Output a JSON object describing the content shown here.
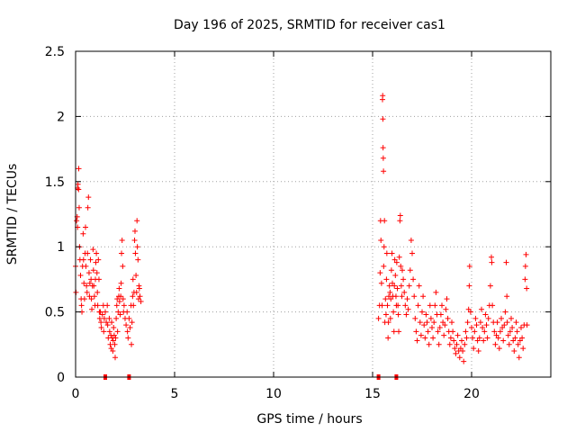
{
  "chart_data": {
    "type": "scatter",
    "title": "Day 196 of 2025, SRMTID for receiver cas1",
    "xlabel": "GPS time / hours",
    "ylabel": "SRMTID / TECUs",
    "xlim": [
      0,
      24
    ],
    "ylim": [
      0,
      2.5
    ],
    "xticks": [
      0,
      5,
      10,
      15,
      20
    ],
    "yticks": [
      0,
      0.5,
      1,
      1.5,
      2,
      2.5
    ],
    "xtick_labels": [
      "0",
      "5",
      "10",
      "15",
      "20"
    ],
    "ytick_labels": [
      "0",
      "0.5",
      "1",
      "1.5",
      "2",
      "2.5"
    ],
    "grid": true,
    "marker": "+",
    "marker_color": "#ff0000",
    "series": [
      {
        "name": "cas1",
        "points": [
          [
            0.0,
            0.85
          ],
          [
            0.02,
            0.65
          ],
          [
            0.05,
            1.2
          ],
          [
            0.08,
            1.23
          ],
          [
            0.1,
            1.15
          ],
          [
            0.1,
            1.45
          ],
          [
            0.12,
            1.48
          ],
          [
            0.15,
            1.44
          ],
          [
            0.16,
            1.6
          ],
          [
            0.18,
            1.3
          ],
          [
            0.2,
            1.0
          ],
          [
            0.22,
            0.9
          ],
          [
            0.25,
            0.78
          ],
          [
            0.28,
            0.6
          ],
          [
            0.3,
            0.55
          ],
          [
            0.32,
            0.5
          ],
          [
            0.35,
            0.85
          ],
          [
            0.38,
            1.1
          ],
          [
            0.4,
            0.9
          ],
          [
            0.42,
            0.72
          ],
          [
            0.45,
            0.6
          ],
          [
            0.48,
            0.95
          ],
          [
            0.5,
            1.15
          ],
          [
            0.52,
            0.85
          ],
          [
            0.55,
            0.7
          ],
          [
            0.58,
            0.65
          ],
          [
            0.6,
            0.95
          ],
          [
            0.62,
            1.3
          ],
          [
            0.65,
            1.38
          ],
          [
            0.68,
            0.8
          ],
          [
            0.7,
            0.62
          ],
          [
            0.72,
            0.72
          ],
          [
            0.75,
            0.9
          ],
          [
            0.78,
            0.75
          ],
          [
            0.8,
            0.6
          ],
          [
            0.82,
            0.52
          ],
          [
            0.85,
            0.7
          ],
          [
            0.88,
            0.98
          ],
          [
            0.9,
            0.82
          ],
          [
            0.92,
            0.7
          ],
          [
            0.95,
            0.62
          ],
          [
            0.98,
            0.55
          ],
          [
            1.0,
            0.75
          ],
          [
            1.02,
            0.88
          ],
          [
            1.05,
            0.95
          ],
          [
            1.08,
            0.8
          ],
          [
            1.1,
            0.65
          ],
          [
            1.12,
            0.55
          ],
          [
            1.15,
            0.9
          ],
          [
            1.18,
            0.75
          ],
          [
            1.2,
            0.5
          ],
          [
            1.22,
            0.45
          ],
          [
            1.25,
            0.5
          ],
          [
            1.28,
            0.42
          ],
          [
            1.3,
            0.38
          ],
          [
            1.35,
            0.48
          ],
          [
            1.4,
            0.55
          ],
          [
            1.42,
            0.35
          ],
          [
            1.45,
            0.45
          ],
          [
            1.5,
            0.5
          ],
          [
            1.55,
            0.42
          ],
          [
            1.6,
            0.55
          ],
          [
            1.62,
            0.4
          ],
          [
            1.65,
            0.3
          ],
          [
            1.7,
            0.45
          ],
          [
            1.72,
            0.35
          ],
          [
            1.75,
            0.25
          ],
          [
            1.78,
            0.32
          ],
          [
            1.8,
            0.22
          ],
          [
            1.82,
            0.42
          ],
          [
            1.85,
            0.3
          ],
          [
            1.88,
            0.2
          ],
          [
            1.9,
            0.28
          ],
          [
            1.92,
            0.38
          ],
          [
            1.95,
            0.32
          ],
          [
            1.98,
            0.25
          ],
          [
            2.0,
            0.15
          ],
          [
            2.02,
            0.3
          ],
          [
            2.05,
            0.45
          ],
          [
            2.08,
            0.55
          ],
          [
            2.1,
            0.6
          ],
          [
            2.12,
            0.35
          ],
          [
            2.15,
            0.5
          ],
          [
            2.18,
            0.62
          ],
          [
            2.2,
            0.68
          ],
          [
            2.22,
            0.58
          ],
          [
            2.25,
            0.48
          ],
          [
            2.28,
            0.62
          ],
          [
            2.3,
            0.72
          ],
          [
            2.32,
            0.95
          ],
          [
            2.35,
            1.05
          ],
          [
            2.38,
            0.85
          ],
          [
            2.4,
            0.6
          ],
          [
            2.42,
            0.5
          ],
          [
            2.45,
            0.55
          ],
          [
            2.5,
            0.45
          ],
          [
            2.55,
            0.4
          ],
          [
            2.6,
            0.5
          ],
          [
            2.62,
            0.35
          ],
          [
            2.65,
            0.3
          ],
          [
            2.7,
            0.45
          ],
          [
            2.75,
            0.38
          ],
          [
            2.8,
            0.55
          ],
          [
            2.82,
            0.25
          ],
          [
            2.85,
            0.42
          ],
          [
            2.88,
            0.62
          ],
          [
            2.9,
            0.75
          ],
          [
            2.92,
            0.55
          ],
          [
            2.95,
            0.65
          ],
          [
            2.98,
            1.05
          ],
          [
            3.0,
            1.12
          ],
          [
            3.02,
            0.95
          ],
          [
            3.05,
            0.78
          ],
          [
            3.08,
            0.65
          ],
          [
            3.1,
            1.2
          ],
          [
            3.12,
            1.0
          ],
          [
            3.15,
            0.9
          ],
          [
            3.18,
            0.6
          ],
          [
            3.2,
            0.7
          ],
          [
            3.22,
            0.68
          ],
          [
            3.25,
            0.62
          ],
          [
            3.3,
            0.58
          ],
          [
            15.3,
            0.45
          ],
          [
            15.35,
            0.55
          ],
          [
            15.38,
            0.8
          ],
          [
            15.4,
            1.2
          ],
          [
            15.42,
            1.05
          ],
          [
            15.45,
            0.72
          ],
          [
            15.48,
            0.55
          ],
          [
            15.5,
            2.13
          ],
          [
            15.51,
            2.16
          ],
          [
            15.52,
            1.98
          ],
          [
            15.53,
            1.76
          ],
          [
            15.54,
            1.68
          ],
          [
            15.55,
            1.58
          ],
          [
            15.56,
            0.85
          ],
          [
            15.58,
            1.0
          ],
          [
            15.6,
            1.2
          ],
          [
            15.62,
            0.42
          ],
          [
            15.65,
            0.6
          ],
          [
            15.68,
            0.48
          ],
          [
            15.7,
            0.75
          ],
          [
            15.72,
            0.95
          ],
          [
            15.75,
            0.55
          ],
          [
            15.78,
            0.3
          ],
          [
            15.8,
            0.42
          ],
          [
            15.82,
            0.62
          ],
          [
            15.85,
            0.7
          ],
          [
            15.88,
            0.65
          ],
          [
            15.9,
            0.45
          ],
          [
            15.92,
            0.6
          ],
          [
            15.95,
            0.82
          ],
          [
            15.98,
            0.95
          ],
          [
            16.0,
            0.72
          ],
          [
            16.02,
            0.62
          ],
          [
            16.05,
            0.5
          ],
          [
            16.08,
            0.35
          ],
          [
            16.1,
            0.7
          ],
          [
            16.12,
            0.9
          ],
          [
            16.15,
            0.78
          ],
          [
            16.18,
            0.62
          ],
          [
            16.2,
            0.55
          ],
          [
            16.22,
            0.88
          ],
          [
            16.25,
            0.68
          ],
          [
            16.28,
            0.55
          ],
          [
            16.3,
            0.48
          ],
          [
            16.32,
            0.35
          ],
          [
            16.35,
            0.92
          ],
          [
            16.38,
            1.2
          ],
          [
            16.4,
            1.24
          ],
          [
            16.42,
            0.85
          ],
          [
            16.45,
            0.7
          ],
          [
            16.48,
            0.62
          ],
          [
            16.5,
            0.82
          ],
          [
            16.55,
            0.75
          ],
          [
            16.6,
            0.65
          ],
          [
            16.65,
            0.55
          ],
          [
            16.7,
            0.48
          ],
          [
            16.75,
            0.6
          ],
          [
            16.8,
            0.52
          ],
          [
            16.85,
            0.7
          ],
          [
            16.9,
            0.82
          ],
          [
            16.95,
            1.05
          ],
          [
            17.0,
            0.95
          ],
          [
            17.05,
            0.75
          ],
          [
            17.1,
            0.62
          ],
          [
            17.15,
            0.45
          ],
          [
            17.2,
            0.35
          ],
          [
            17.25,
            0.28
          ],
          [
            17.3,
            0.55
          ],
          [
            17.35,
            0.7
          ],
          [
            17.4,
            0.42
          ],
          [
            17.45,
            0.32
          ],
          [
            17.5,
            0.5
          ],
          [
            17.55,
            0.62
          ],
          [
            17.6,
            0.4
          ],
          [
            17.65,
            0.3
          ],
          [
            17.7,
            0.48
          ],
          [
            17.75,
            0.42
          ],
          [
            17.8,
            0.35
          ],
          [
            17.85,
            0.25
          ],
          [
            17.9,
            0.55
          ],
          [
            17.95,
            0.45
          ],
          [
            18.0,
            0.38
          ],
          [
            18.05,
            0.3
          ],
          [
            18.1,
            0.42
          ],
          [
            18.15,
            0.55
          ],
          [
            18.2,
            0.65
          ],
          [
            18.25,
            0.48
          ],
          [
            18.3,
            0.35
          ],
          [
            18.35,
            0.25
          ],
          [
            18.4,
            0.38
          ],
          [
            18.45,
            0.48
          ],
          [
            18.5,
            0.55
          ],
          [
            18.55,
            0.42
          ],
          [
            18.6,
            0.32
          ],
          [
            18.65,
            0.4
          ],
          [
            18.7,
            0.52
          ],
          [
            18.75,
            0.6
          ],
          [
            18.8,
            0.45
          ],
          [
            18.85,
            0.35
          ],
          [
            18.9,
            0.25
          ],
          [
            18.95,
            0.3
          ],
          [
            19.0,
            0.42
          ],
          [
            19.05,
            0.35
          ],
          [
            19.1,
            0.28
          ],
          [
            19.15,
            0.22
          ],
          [
            19.2,
            0.18
          ],
          [
            19.25,
            0.25
          ],
          [
            19.3,
            0.32
          ],
          [
            19.35,
            0.2
          ],
          [
            19.4,
            0.15
          ],
          [
            19.45,
            0.22
          ],
          [
            19.5,
            0.28
          ],
          [
            19.55,
            0.2
          ],
          [
            19.6,
            0.12
          ],
          [
            19.65,
            0.25
          ],
          [
            19.7,
            0.35
          ],
          [
            19.75,
            0.3
          ],
          [
            19.8,
            0.42
          ],
          [
            19.85,
            0.52
          ],
          [
            19.88,
            0.7
          ],
          [
            19.9,
            0.85
          ],
          [
            19.95,
            0.5
          ],
          [
            20.0,
            0.38
          ],
          [
            20.05,
            0.3
          ],
          [
            20.1,
            0.22
          ],
          [
            20.15,
            0.35
          ],
          [
            20.2,
            0.45
          ],
          [
            20.25,
            0.4
          ],
          [
            20.3,
            0.28
          ],
          [
            20.35,
            0.2
          ],
          [
            20.4,
            0.3
          ],
          [
            20.45,
            0.42
          ],
          [
            20.5,
            0.52
          ],
          [
            20.55,
            0.38
          ],
          [
            20.6,
            0.28
          ],
          [
            20.65,
            0.35
          ],
          [
            20.7,
            0.48
          ],
          [
            20.75,
            0.4
          ],
          [
            20.8,
            0.3
          ],
          [
            20.85,
            0.45
          ],
          [
            20.9,
            0.55
          ],
          [
            20.95,
            0.7
          ],
          [
            21.0,
            0.92
          ],
          [
            21.02,
            0.88
          ],
          [
            21.05,
            0.55
          ],
          [
            21.1,
            0.42
          ],
          [
            21.15,
            0.35
          ],
          [
            21.2,
            0.25
          ],
          [
            21.25,
            0.32
          ],
          [
            21.3,
            0.42
          ],
          [
            21.35,
            0.3
          ],
          [
            21.4,
            0.22
          ],
          [
            21.45,
            0.35
          ],
          [
            21.5,
            0.45
          ],
          [
            21.55,
            0.38
          ],
          [
            21.6,
            0.28
          ],
          [
            21.65,
            0.4
          ],
          [
            21.7,
            0.5
          ],
          [
            21.75,
            0.88
          ],
          [
            21.78,
            0.62
          ],
          [
            21.8,
            0.42
          ],
          [
            21.85,
            0.32
          ],
          [
            21.9,
            0.25
          ],
          [
            21.95,
            0.35
          ],
          [
            22.0,
            0.45
          ],
          [
            22.05,
            0.38
          ],
          [
            22.1,
            0.28
          ],
          [
            22.15,
            0.2
          ],
          [
            22.2,
            0.3
          ],
          [
            22.25,
            0.42
          ],
          [
            22.3,
            0.35
          ],
          [
            22.35,
            0.25
          ],
          [
            22.4,
            0.15
          ],
          [
            22.45,
            0.28
          ],
          [
            22.5,
            0.38
          ],
          [
            22.55,
            0.3
          ],
          [
            22.6,
            0.22
          ],
          [
            22.65,
            0.4
          ],
          [
            22.7,
            0.75
          ],
          [
            22.72,
            0.85
          ],
          [
            22.75,
            0.94
          ],
          [
            22.78,
            0.68
          ],
          [
            22.8,
            0.4
          ]
        ]
      }
    ],
    "zero_markers": [
      1.5,
      2.7,
      15.3,
      16.2
    ]
  }
}
